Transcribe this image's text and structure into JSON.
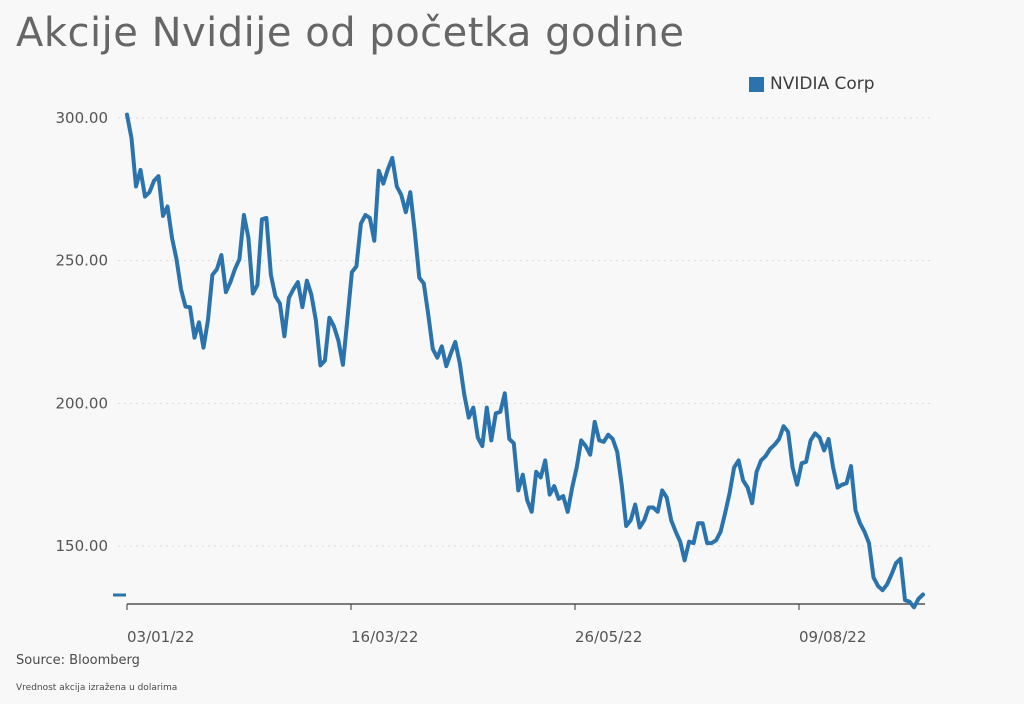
{
  "title": "Akcije Nvidije od početka godine",
  "source": "Source: Bloomberg",
  "note": "Vrednost akcija izražena u dolarima",
  "colors": {
    "line": "#2a73ad",
    "grid": "#d9d9d9",
    "axis": "#333333",
    "text": "#555555"
  },
  "chart_data": {
    "type": "line",
    "title": "Akcije Nvidije od početka godine",
    "xlabel": "",
    "ylabel": "",
    "ylim": [
      128,
      300
    ],
    "yticks": [
      300,
      250,
      200,
      150
    ],
    "ytick_labels": [
      "300.00",
      "250.00",
      "200.00",
      "150.00"
    ],
    "xticks": [
      "03/01/22",
      "16/03/22",
      "26/05/22",
      "09/08/22"
    ],
    "grid": true,
    "legend": "top-right",
    "series": [
      {
        "name": "NVIDIA Corp",
        "values": [
          301.2,
          292.9,
          276.0,
          281.8,
          272.5,
          274.0,
          278.0,
          279.6,
          265.7,
          269.0,
          258.0,
          250.5,
          240.0,
          233.9,
          233.7,
          223.0,
          228.4,
          219.5,
          229.0,
          245.0,
          247.0,
          252.0,
          239.0,
          242.5,
          247.0,
          250.5,
          266.0,
          258.0,
          238.5,
          241.5,
          264.5,
          265.0,
          245.0,
          237.5,
          235.0,
          223.5,
          237.0,
          240.0,
          242.5,
          233.7,
          243.0,
          238.0,
          229.0,
          213.3,
          215.0,
          230.0,
          227.0,
          222.0,
          213.5,
          229.5,
          246.0,
          248.0,
          263.0,
          266.0,
          265.0,
          257.0,
          281.5,
          277.0,
          282.0,
          286.0,
          276.0,
          273.0,
          267.0,
          274.0,
          260.0,
          244.0,
          242.0,
          231.0,
          219.0,
          216.0,
          220.0,
          213.0,
          217.5,
          221.5,
          214.0,
          203.0,
          195.0,
          198.5,
          188.0,
          185.0,
          198.5,
          187.0,
          196.5,
          197.0,
          203.5,
          187.5,
          186.0,
          169.5,
          175.0,
          166.0,
          162.0,
          176.0,
          174.0,
          180.0,
          168.0,
          171.0,
          166.5,
          167.5,
          162.0,
          170.5,
          177.5,
          187.0,
          185.0,
          182.0,
          193.5,
          187.0,
          186.5,
          189.0,
          187.5,
          183.0,
          171.5,
          157.0,
          159.0,
          164.5,
          156.5,
          159.0,
          163.5,
          163.5,
          162.0,
          169.5,
          167.0,
          159.0,
          155.0,
          151.5,
          145.0,
          151.5,
          151.0,
          158.0,
          158.0,
          151.0,
          151.0,
          152.0,
          155.0,
          161.5,
          168.5,
          177.5,
          180.0,
          173.0,
          170.5,
          165.0,
          176.0,
          180.0,
          181.5,
          184.0,
          185.5,
          187.5,
          192.0,
          190.0,
          177.5,
          171.5,
          179.0,
          179.5,
          187.0,
          189.5,
          188.0,
          183.5,
          187.5,
          177.5,
          170.5,
          171.5,
          172.0,
          178.0,
          162.5,
          158.0,
          155.0,
          151.0,
          139.0,
          136.0,
          134.5,
          136.5,
          140.0,
          144.0,
          145.5,
          131.0,
          130.5,
          128.5,
          131.5,
          133.0
        ]
      }
    ]
  }
}
